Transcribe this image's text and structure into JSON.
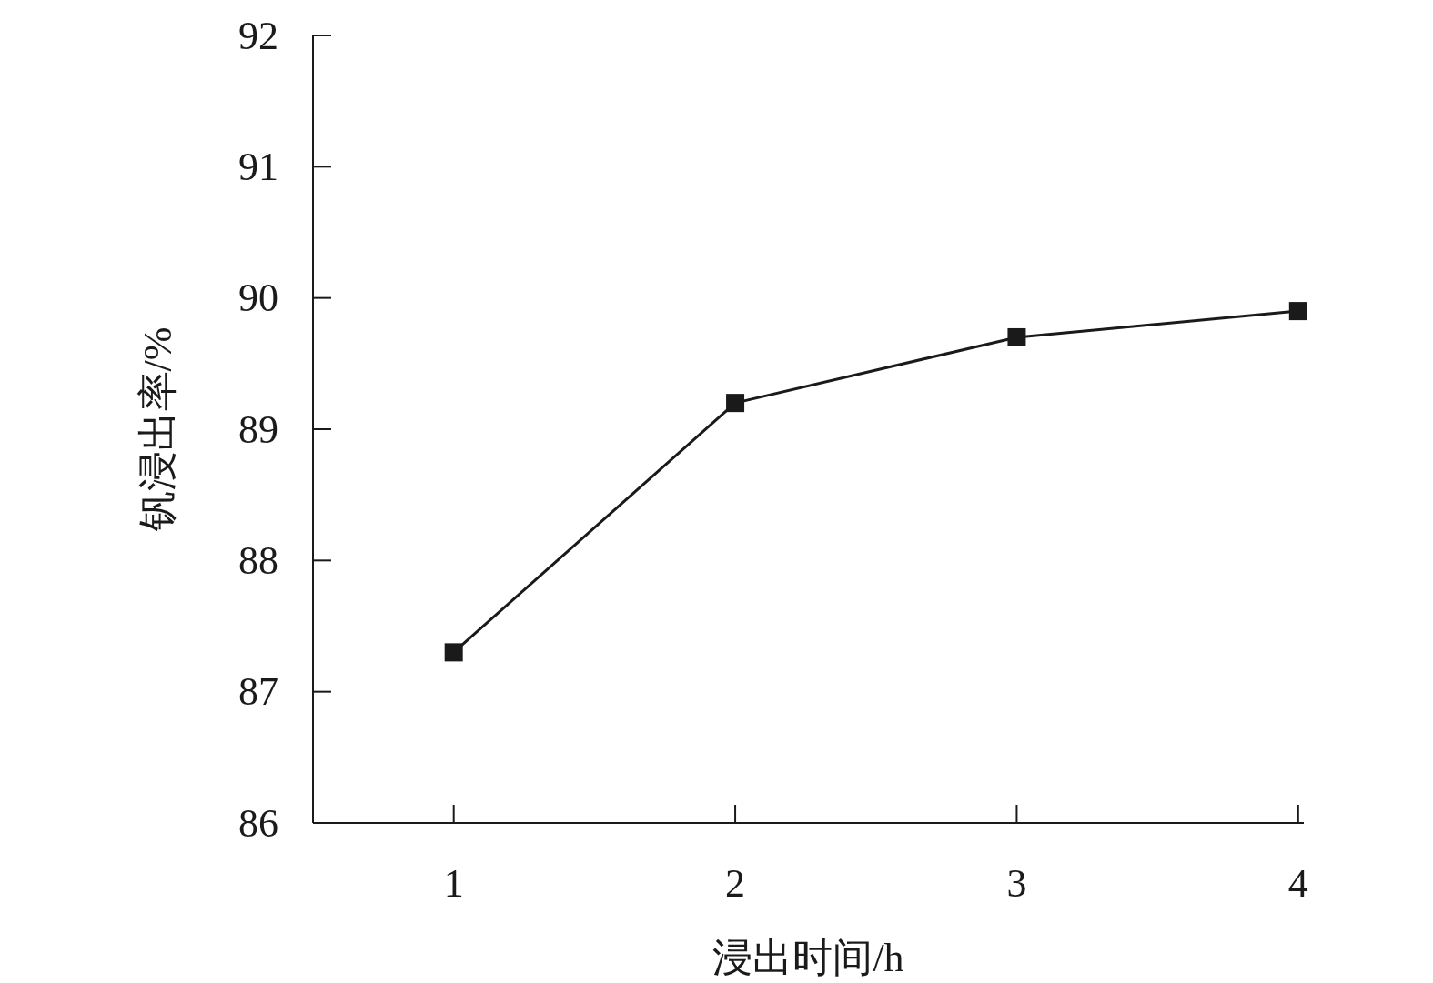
{
  "chart_data": {
    "type": "line",
    "xlabel": "浸出时间/h",
    "ylabel": "钒浸出率/%",
    "x": [
      1,
      2,
      3,
      4
    ],
    "series": [
      {
        "color": "#1a1a1a",
        "values": [
          87.3,
          89.2,
          89.7,
          89.9
        ]
      }
    ],
    "xlim": [
      0.5,
      4.02
    ],
    "xticks": [
      1,
      2,
      3,
      4
    ],
    "ylim": [
      86,
      92
    ],
    "yticks": [
      86,
      87,
      88,
      89,
      90,
      91,
      92
    ],
    "marker": "square",
    "line_style": "solid"
  }
}
